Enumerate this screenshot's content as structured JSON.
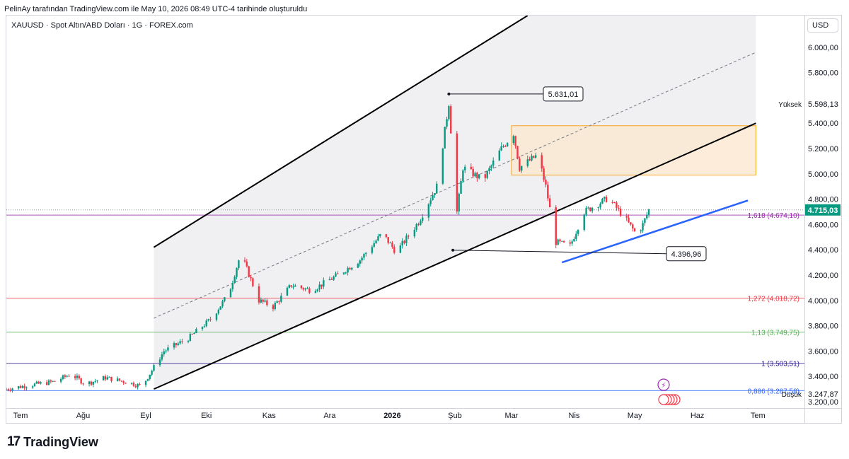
{
  "header": {
    "attribution": "PelinAy tarafından TradingView.com ile May 10, 2026 08:49 UTC-4 tarihinde oluşturuldu"
  },
  "symbol": {
    "title": "XAUUSD · Spot Altın/ABD Doları · 1G · FOREX.com",
    "currency": "USD"
  },
  "footer": {
    "logo_text": "TradingView",
    "logo_mark": "17"
  },
  "colors": {
    "up": "#089981",
    "down": "#f23645",
    "channel": "#000000",
    "trendline": "#2962ff",
    "zone_fill": "#fbe7cf",
    "zone_border": "#f5a623",
    "price_tag": "#089981",
    "fib_1618": "#9c27b0",
    "fib_1272": "#f23645",
    "fib_113": "#4caf50",
    "fib_1": "#311b92",
    "fib_0886": "#2962ff"
  },
  "chart_data": {
    "type": "candlestick",
    "title": "XAUUSD · Spot Altın/ABD Doları · 1G · FOREX.com",
    "ylim": [
      3150,
      6250
    ],
    "y_ticks": [
      "6.000,00",
      "5.800,00",
      "5.400,00",
      "5.200,00",
      "5.000,00",
      "4.800,00",
      "4.600,00",
      "4.400,00",
      "4.200,00",
      "4.000,00",
      "3.800,00",
      "3.600,00",
      "3.400,00",
      "3.200,00"
    ],
    "y_tick_values": [
      6000,
      5800,
      5400,
      5200,
      5000,
      4800,
      4600,
      4400,
      4200,
      4000,
      3800,
      3600,
      3400,
      3200
    ],
    "x_ticks": [
      "Tem",
      "Ağu",
      "Eyl",
      "Eki",
      "Kas",
      "Ara",
      "2026",
      "Şub",
      "Mar",
      "Nis",
      "May",
      "Haz",
      "Tem"
    ],
    "x_range": [
      "2025-06-24",
      "2026-07-24"
    ],
    "x_tick_dates": [
      "2025-07-01",
      "2025-08-01",
      "2025-09-01",
      "2025-10-01",
      "2025-11-01",
      "2025-12-01",
      "2026-01-01",
      "2026-02-01",
      "2026-03-01",
      "2026-04-01",
      "2026-05-01",
      "2026-06-01",
      "2026-07-01"
    ],
    "price_path": [
      [
        "2025-06-24",
        3300
      ],
      [
        "2025-07-05",
        3330
      ],
      [
        "2025-07-18",
        3360
      ],
      [
        "2025-07-26",
        3420
      ],
      [
        "2025-08-02",
        3340
      ],
      [
        "2025-08-12",
        3390
      ],
      [
        "2025-08-24",
        3350
      ],
      [
        "2025-08-30",
        3320
      ],
      [
        "2025-09-10",
        3600
      ],
      [
        "2025-09-22",
        3700
      ],
      [
        "2025-10-03",
        3850
      ],
      [
        "2025-10-12",
        4050
      ],
      [
        "2025-10-18",
        4370
      ],
      [
        "2025-10-27",
        4000
      ],
      [
        "2025-11-03",
        3950
      ],
      [
        "2025-11-12",
        4120
      ],
      [
        "2025-11-22",
        4080
      ],
      [
        "2025-12-05",
        4200
      ],
      [
        "2025-12-16",
        4320
      ],
      [
        "2025-12-27",
        4530
      ],
      [
        "2026-01-03",
        4380
      ],
      [
        "2026-01-14",
        4620
      ],
      [
        "2026-01-23",
        4900
      ],
      [
        "2026-01-29",
        5560
      ],
      [
        "2026-02-02",
        4700
      ],
      [
        "2026-02-05",
        5050
      ],
      [
        "2026-02-15",
        4950
      ],
      [
        "2026-02-24",
        5200
      ],
      [
        "2026-03-02",
        5320
      ],
      [
        "2026-03-05",
        5050
      ],
      [
        "2026-03-14",
        5150
      ],
      [
        "2026-03-18",
        4900
      ],
      [
        "2026-03-23",
        4460
      ],
      [
        "2026-03-30",
        4430
      ],
      [
        "2026-04-06",
        4700
      ],
      [
        "2026-04-18",
        4810
      ],
      [
        "2026-04-27",
        4630
      ],
      [
        "2026-05-02",
        4520
      ],
      [
        "2026-05-05",
        4600
      ],
      [
        "2026-05-08",
        4715
      ]
    ],
    "last_price": {
      "value": 4715.03,
      "label": "4.715,03"
    },
    "high_label": {
      "text": "Yüksek",
      "value": "5.598,13"
    },
    "low_label": {
      "text": "Düşük",
      "value": "3.247,87"
    },
    "annotations": [
      {
        "text": "5.631,01",
        "date": "2026-01-29",
        "value": 5631.01
      },
      {
        "text": "4.396,96",
        "date": "2026-01-31",
        "value": 4396.96
      }
    ],
    "fib_levels": [
      {
        "ratio_label": "1,618 (4.674,10)",
        "value": 4674.1,
        "color": "#9c27b0"
      },
      {
        "ratio_label": "1,272 (4.018,72)",
        "value": 4018.72,
        "color": "#f23645"
      },
      {
        "ratio_label": "1,13 (3.749,75)",
        "value": 3749.75,
        "color": "#4caf50"
      },
      {
        "ratio_label": "1 (3.503,51)",
        "value": 3503.51,
        "color": "#311b92"
      },
      {
        "ratio_label": "0,886 (3.287,58)",
        "value": 3287.58,
        "color": "#2962ff"
      }
    ],
    "channel": {
      "upper": [
        [
          "2025-09-05",
          4420
        ],
        [
          "2026-03-09",
          6250
        ]
      ],
      "lower": [
        [
          "2025-09-05",
          3300
        ],
        [
          "2026-06-30",
          5400
        ]
      ],
      "mid": [
        [
          "2025-09-05",
          3860
        ],
        [
          "2026-06-30",
          5960
        ]
      ]
    },
    "resistance_zone": {
      "from": "2026-03-01",
      "to": "2026-06-30",
      "low": 4990,
      "high": 5380
    },
    "support_trendline": [
      [
        "2026-03-26",
        4300
      ],
      [
        "2026-06-26",
        4790
      ]
    ]
  }
}
